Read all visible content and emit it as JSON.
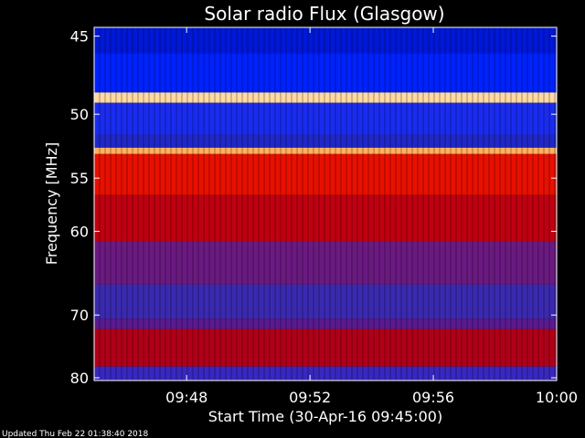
{
  "chart_data": {
    "type": "heatmap",
    "title": "Solar radio Flux (Glasgow)",
    "xlabel": "Start Time (30-Apr-16 09:45:00)",
    "ylabel": "Frequency [MHz]",
    "x_range": [
      "09:45:00",
      "10:00:00"
    ],
    "x_ticks": [
      "09:48",
      "09:52",
      "09:56",
      "10:00"
    ],
    "y_range_mhz": [
      44.5,
      80.5
    ],
    "y_scale": "reciprocal",
    "y_ticks": [
      45,
      50,
      55,
      60,
      70,
      80
    ],
    "colorscale": [
      "#0000ff",
      "#3a2bb0",
      "#8a1a6a",
      "#c80000",
      "#ff2a00",
      "#ffcc66",
      "#ffffff"
    ],
    "bands": [
      {
        "from_mhz": 44.5,
        "to_mhz": 46.0,
        "color": "#0018d8"
      },
      {
        "from_mhz": 46.0,
        "to_mhz": 48.5,
        "color": "#0022ff"
      },
      {
        "from_mhz": 48.5,
        "to_mhz": 49.2,
        "color": "#ffd9a0"
      },
      {
        "from_mhz": 49.2,
        "to_mhz": 51.5,
        "color": "#1a2cf0"
      },
      {
        "from_mhz": 51.5,
        "to_mhz": 52.5,
        "color": "#2028c8"
      },
      {
        "from_mhz": 52.5,
        "to_mhz": 53.0,
        "color": "#ffb060"
      },
      {
        "from_mhz": 53.0,
        "to_mhz": 56.5,
        "color": "#e81000"
      },
      {
        "from_mhz": 56.5,
        "to_mhz": 61.0,
        "color": "#c00010"
      },
      {
        "from_mhz": 61.0,
        "to_mhz": 66.0,
        "color": "#6a1a80"
      },
      {
        "from_mhz": 66.0,
        "to_mhz": 70.5,
        "color": "#3a2ab0"
      },
      {
        "from_mhz": 70.5,
        "to_mhz": 72.0,
        "color": "#5a1a90"
      },
      {
        "from_mhz": 72.0,
        "to_mhz": 78.0,
        "color": "#b00018"
      },
      {
        "from_mhz": 78.0,
        "to_mhz": 80.5,
        "color": "#3828c0"
      }
    ],
    "grid": false
  },
  "footer": {
    "updated": "Updated Thu Feb 22 01:38:40 2018"
  }
}
